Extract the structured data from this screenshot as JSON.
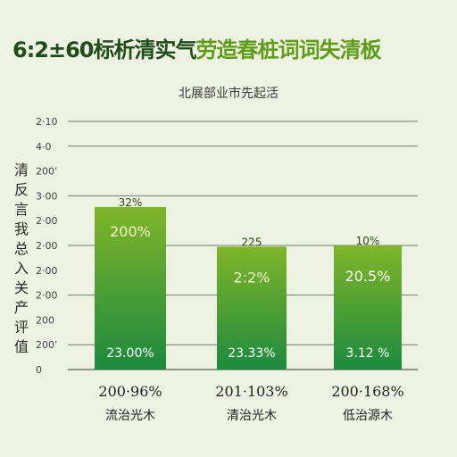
{
  "page_title": {
    "part1": "6:2±60标析清实气",
    "part2": "劳造春桩词词失清板"
  },
  "colors": {
    "bar_top": "#7fb52a",
    "bar_bottom": "#1d8a3e",
    "grid": "#6d7a6a"
  },
  "chart_data": {
    "type": "bar",
    "title": "北展部业市先起活",
    "xlabel": "",
    "ylabel": "清反言我总入关产评值",
    "ylim": [
      0,
      400
    ],
    "yticks": [
      "0",
      "200’",
      "200",
      "2·00",
      "2·00",
      "2·00",
      "2·00",
      "3·00",
      "200’",
      "4·0",
      "2·10"
    ],
    "categories": [
      {
        "name": "200·96%",
        "sub": "流治光木"
      },
      {
        "name": "201·103%",
        "sub": "清治光木"
      },
      {
        "name": "200·168%",
        "sub": "低治源木"
      }
    ],
    "values": [
      262,
      198,
      200
    ],
    "labels_top": [
      "32%",
      "225",
      "10%"
    ],
    "labels_mid": [
      "200%",
      "2:2%",
      "20.5%"
    ],
    "labels_bottom": [
      "23.00%",
      "23.33%",
      "3.12 %"
    ]
  }
}
